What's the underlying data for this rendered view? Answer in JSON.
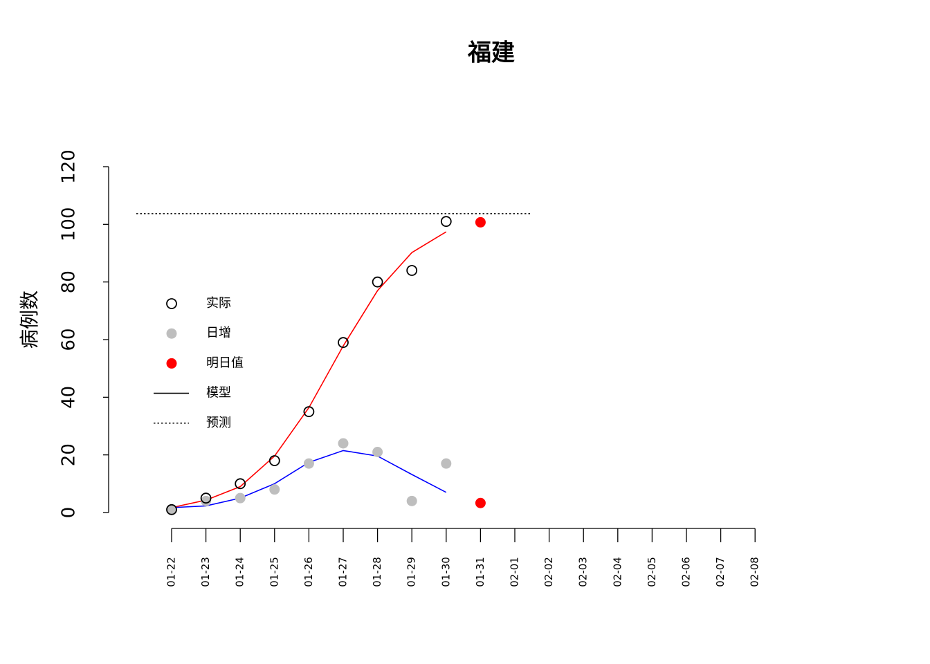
{
  "chart_data": {
    "type": "line",
    "title": "福建",
    "y_label": "病例数",
    "categories": [
      "01-22",
      "01-23",
      "01-24",
      "01-25",
      "01-26",
      "01-27",
      "01-28",
      "01-29",
      "01-30",
      "01-31",
      "02-01",
      "02-02",
      "02-03",
      "02-04",
      "02-05",
      "02-06",
      "02-07",
      "02-08"
    ],
    "ylim": [
      0,
      120
    ],
    "yticks": [
      0,
      20,
      40,
      60,
      80,
      100,
      120
    ],
    "series": [
      {
        "style": "open-point",
        "color": "#000000",
        "values": [
          1,
          5,
          10,
          18,
          35,
          59,
          80,
          84,
          101,
          null,
          null,
          null,
          null,
          null,
          null,
          null,
          null,
          null
        ]
      },
      {
        "style": "point",
        "color": "#bebebe",
        "values": [
          1,
          4,
          5,
          8,
          17,
          24,
          21,
          4,
          17,
          null,
          null,
          null,
          null,
          null,
          null,
          null,
          null,
          null
        ]
      },
      {
        "style": "point",
        "color": "#ff0000",
        "values": [
          null,
          null,
          null,
          null,
          null,
          null,
          null,
          null,
          null,
          100.7,
          null,
          null,
          null,
          null,
          null,
          null,
          null,
          null
        ]
      },
      {
        "style": "point",
        "color": "#ff0000",
        "values": [
          null,
          null,
          null,
          null,
          null,
          null,
          null,
          null,
          null,
          3.3,
          null,
          null,
          null,
          null,
          null,
          null,
          null,
          null
        ]
      },
      {
        "style": "line",
        "color": "#ff0000",
        "values": [
          1.7,
          4.3,
          9,
          19.6,
          36.4,
          57.8,
          77,
          90.2,
          97.4,
          null,
          null,
          null,
          null,
          null,
          null,
          null,
          null,
          null
        ]
      },
      {
        "style": "line",
        "color": "#0000ff",
        "values": [
          1.7,
          2.3,
          5,
          10,
          17.4,
          21.5,
          19.6,
          13.2,
          7,
          null,
          null,
          null,
          null,
          null,
          null,
          null,
          null,
          null
        ]
      }
    ],
    "forecast_level": 103.7,
    "legend": [
      {
        "label": "实际",
        "style": "open-point",
        "color": "#000000"
      },
      {
        "label": "日增",
        "style": "point",
        "color": "#bebebe"
      },
      {
        "label": "明日值",
        "style": "point",
        "color": "#ff0000"
      },
      {
        "label": "模型",
        "style": "line",
        "color": "#000000"
      },
      {
        "label": "预测",
        "style": "dotted",
        "color": "#000000"
      }
    ]
  }
}
